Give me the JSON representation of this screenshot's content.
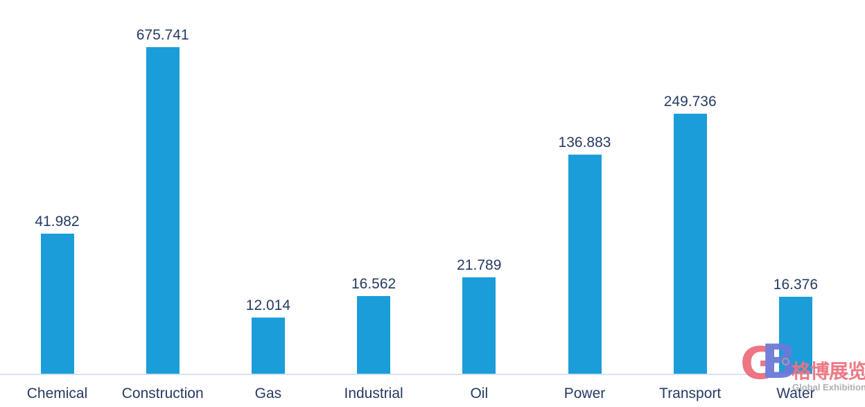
{
  "chart_data": {
    "type": "bar",
    "categories": [
      "Chemical",
      "Construction",
      "Gas",
      "Industrial",
      "Oil",
      "Power",
      "Transport",
      "Water"
    ],
    "values": [
      41.982,
      675.741,
      12.014,
      16.562,
      21.789,
      136.883,
      249.736,
      16.376
    ],
    "value_labels": [
      "41.982",
      "675.741",
      "12.014",
      "16.562",
      "21.789",
      "136.883",
      "249.736",
      "16.376"
    ],
    "title": "",
    "xlabel": "",
    "ylabel": "",
    "scale": "log",
    "grid": false,
    "legend": false,
    "data_labels": true,
    "bar_color": "#1A9DD9",
    "label_color": "#253A62",
    "axis_line_color": "#D6E1F3"
  },
  "watermark": {
    "monogram_g": "G",
    "monogram_b": "B",
    "cn_text": "格博展览",
    "en_text": "Global Exhibition",
    "g_color": "#ED6E7E",
    "b_color": "#6B7AD8",
    "cn_color": "#EE7280",
    "en_color": "#A7ADB3",
    "ring_color": "#9AA3AB"
  }
}
